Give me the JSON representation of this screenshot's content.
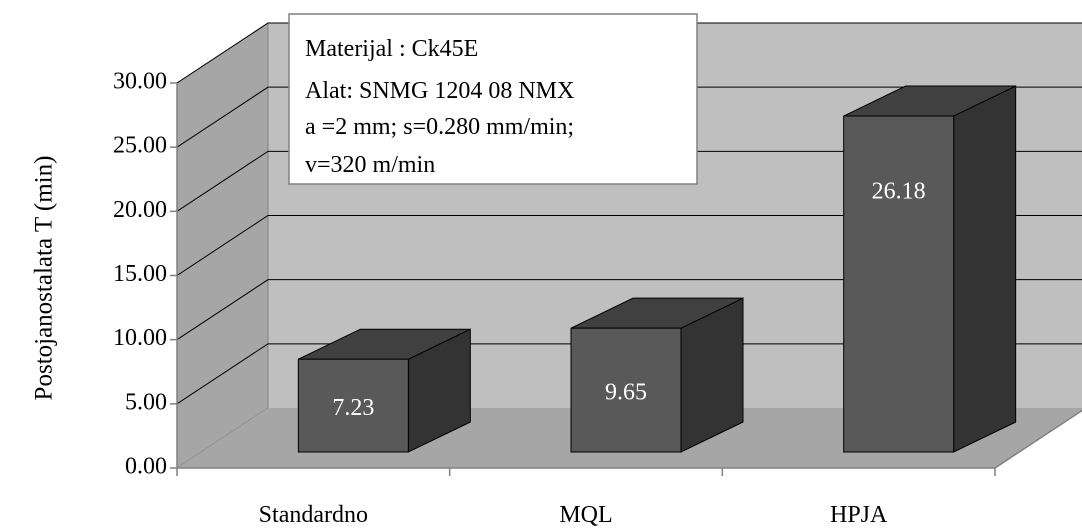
{
  "chart_data": {
    "type": "bar",
    "style": "3d-column",
    "categories": [
      "Standardno",
      "MQL",
      "HPJA"
    ],
    "values": [
      7.23,
      9.65,
      26.18
    ],
    "value_labels": [
      "7.23",
      "9.65",
      "26.18"
    ],
    "ylabel": "Postojanostalata T (min)",
    "xlabel": "",
    "ylim": [
      0,
      30
    ],
    "yticks": [
      "0.00",
      "5.00",
      "10.00",
      "15.00",
      "20.00",
      "25.00",
      "30.00"
    ],
    "grid": true,
    "annotation_box": [
      "Materijal : Ck45E",
      "Alat: SNMG 1204 08 NMX",
      "a =2 mm; s=0.280 mm/min;",
      "v=320 m/min"
    ]
  },
  "colors": {
    "bar_front": "#595959",
    "bar_top": "#404040",
    "bar_side": "#333333",
    "back_wall": "#bfbfbf",
    "side_wall": "#a6a6a6",
    "floor": "#a6a6a6",
    "grid": "#000000",
    "wall_edge": "#808080",
    "box_border": "#808080"
  }
}
